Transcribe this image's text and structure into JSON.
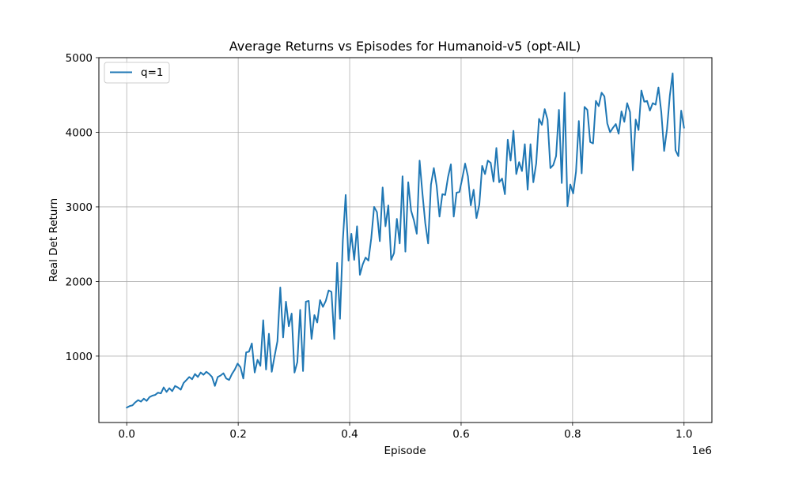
{
  "chart_data": {
    "type": "line",
    "title": "Average Returns vs Episodes for Humanoid-v5 (opt-AIL)",
    "xlabel": "Episode",
    "ylabel": "Real Det Return",
    "x_offset_label": "1e6",
    "xlim": [
      -0.05,
      1.05
    ],
    "ylim": [
      110,
      5000
    ],
    "x_ticks": [
      0.0,
      0.2,
      0.4,
      0.6,
      0.8,
      1.0
    ],
    "x_tick_labels": [
      "0.0",
      "0.2",
      "0.4",
      "0.6",
      "0.8",
      "1.0"
    ],
    "y_ticks": [
      1000,
      2000,
      3000,
      4000,
      5000
    ],
    "y_tick_labels": [
      "1000",
      "2000",
      "3000",
      "4000",
      "5000"
    ],
    "grid": true,
    "legend_position": "upper-left",
    "series": [
      {
        "name": "q=1",
        "color": "#1f77b4",
        "x_start": 0.0,
        "x_end": 1.0,
        "values": [
          310,
          330,
          340,
          380,
          410,
          390,
          430,
          400,
          450,
          470,
          480,
          510,
          500,
          580,
          520,
          570,
          530,
          600,
          580,
          550,
          640,
          680,
          720,
          690,
          760,
          720,
          780,
          750,
          790,
          760,
          720,
          600,
          720,
          740,
          770,
          700,
          680,
          760,
          820,
          900,
          850,
          700,
          1050,
          1060,
          1170,
          780,
          950,
          870,
          1480,
          820,
          1300,
          790,
          1000,
          1200,
          1920,
          1250,
          1730,
          1400,
          1570,
          780,
          920,
          1620,
          800,
          1730,
          1740,
          1230,
          1550,
          1450,
          1750,
          1660,
          1740,
          1880,
          1860,
          1230,
          2250,
          1500,
          2550,
          3160,
          2280,
          2640,
          2290,
          2740,
          2090,
          2230,
          2320,
          2280,
          2580,
          3000,
          2930,
          2540,
          3260,
          2740,
          3020,
          2290,
          2380,
          2840,
          2510,
          3410,
          2400,
          3330,
          2950,
          2820,
          2640,
          3620,
          3180,
          2780,
          2510,
          3300,
          3520,
          3280,
          2870,
          3170,
          3160,
          3400,
          3570,
          2870,
          3190,
          3200,
          3380,
          3580,
          3410,
          3020,
          3230,
          2850,
          3030,
          3550,
          3440,
          3620,
          3590,
          3340,
          3790,
          3330,
          3380,
          3170,
          3900,
          3620,
          4020,
          3440,
          3600,
          3480,
          3840,
          3230,
          3840,
          3330,
          3580,
          4180,
          4100,
          4310,
          4170,
          3520,
          3560,
          3680,
          4300,
          3320,
          4530,
          3010,
          3300,
          3180,
          3470,
          4150,
          3450,
          4340,
          4300,
          3870,
          3850,
          4420,
          4350,
          4530,
          4480,
          4120,
          4000,
          4060,
          4110,
          3980,
          4280,
          4140,
          4390,
          4270,
          3490,
          4170,
          4030,
          4560,
          4410,
          4420,
          4290,
          4390,
          4370,
          4600,
          4270,
          3750,
          4040,
          4490,
          4790,
          3760,
          3680,
          4290,
          4060
        ]
      }
    ]
  }
}
